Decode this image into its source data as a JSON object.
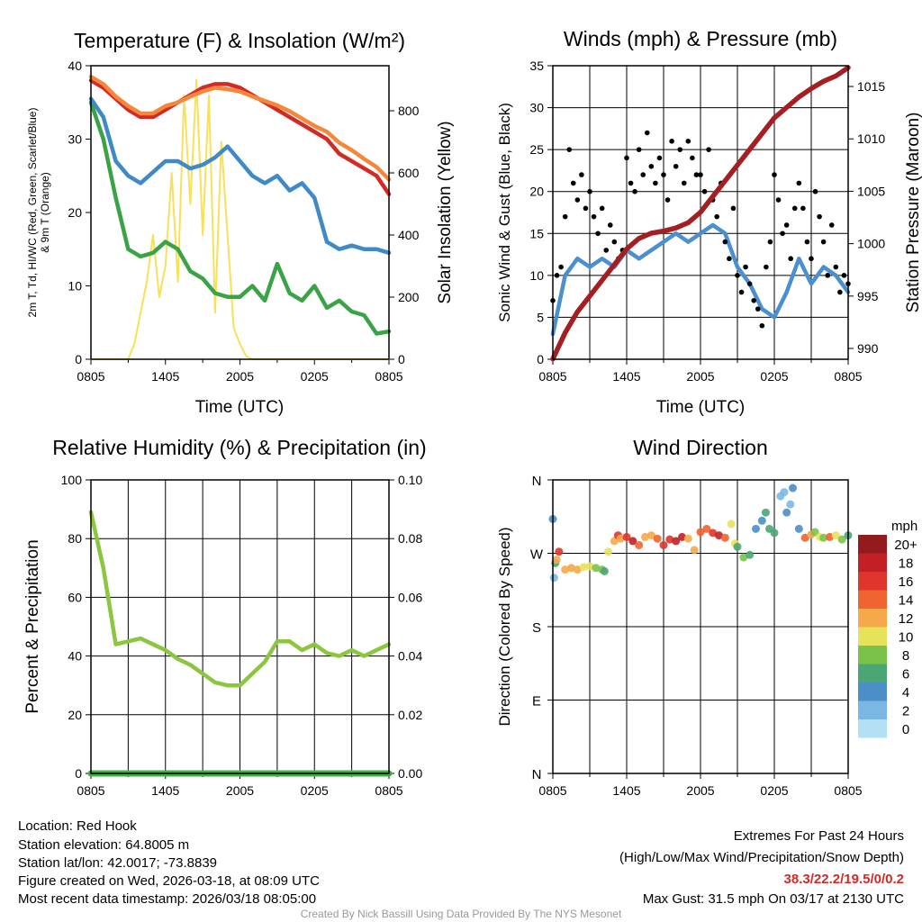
{
  "x_tick_labels": [
    "0805",
    "1405",
    "2005",
    "0205",
    "0805"
  ],
  "chart_data": [
    {
      "type": "line",
      "title": "Temperature (F) & Insolation (W/m²)",
      "xlabel": "Time (UTC)",
      "ylabel_line1": "2m T, Td, HI/WC (Red, Green, Scarlet/Blue)",
      "ylabel_line2": "& 9m T (Orange)",
      "ylabel_right": "Solar Insolation (Yellow)",
      "x_hours": [
        0,
        1,
        2,
        3,
        4,
        5,
        6,
        7,
        8,
        9,
        10,
        11,
        12,
        13,
        14,
        15,
        16,
        17,
        18,
        19,
        20,
        21,
        22,
        23,
        24
      ],
      "ylim": [
        0,
        40
      ],
      "y2lim": [
        0,
        945
      ],
      "yticks": [
        0,
        10,
        20,
        30,
        40
      ],
      "y2ticks": [
        0,
        200,
        400,
        600,
        800
      ],
      "series": [
        {
          "name": "2m T",
          "color": "#d42a26",
          "values": [
            38,
            37,
            35.5,
            34,
            33,
            33,
            34,
            35,
            36,
            37,
            37.5,
            37.5,
            37,
            36,
            35,
            34,
            33,
            32,
            31,
            30,
            28,
            27,
            26,
            25,
            22.5
          ]
        },
        {
          "name": "9m T",
          "color": "#f5873a",
          "values": [
            38.5,
            37.5,
            35.8,
            34.5,
            33.5,
            33.5,
            34.5,
            35,
            35.8,
            36.5,
            37,
            36.8,
            36.5,
            35.8,
            35.2,
            34.6,
            33.8,
            32.8,
            31.8,
            31,
            29.5,
            28.5,
            27.3,
            26.2,
            24.5
          ]
        },
        {
          "name": "Td",
          "color": "#3aa345",
          "values": [
            35,
            30,
            22,
            15,
            14,
            14.5,
            16,
            15,
            12,
            11,
            9,
            8.5,
            8.5,
            10,
            8,
            13,
            9,
            8,
            10,
            7,
            8,
            6.5,
            6,
            3.5,
            3.8
          ]
        },
        {
          "name": "HI/WC",
          "color": "#3f8ac6",
          "values": [
            35.5,
            33,
            27,
            25,
            24,
            25.5,
            27,
            27,
            26,
            26.5,
            27.5,
            29,
            27,
            25,
            24,
            25,
            23,
            24,
            22,
            16,
            15,
            15.5,
            15,
            15,
            14.5
          ]
        }
      ],
      "insolation": {
        "name": "Solar",
        "color": "#f8e05a",
        "step_hours": 0.5,
        "values": [
          0,
          0,
          0,
          0,
          0,
          0,
          0,
          50,
          150,
          250,
          400,
          200,
          300,
          600,
          250,
          850,
          500,
          900,
          400,
          850,
          150,
          700,
          400,
          100,
          50,
          10,
          0,
          0,
          0,
          0,
          0,
          0,
          0,
          0,
          0,
          0,
          0,
          0,
          0,
          0,
          0,
          0,
          0,
          0,
          0,
          0,
          0,
          0,
          0
        ]
      }
    },
    {
      "type": "line",
      "title": "Winds (mph) & Pressure (mb)",
      "xlabel": "Time (UTC)",
      "ylabel": "Sonic Wind & Gust (Blue, Black)",
      "ylabel_right": "Station Pressure (Maroon)",
      "ylim": [
        0,
        35
      ],
      "y2lim": [
        988.97,
        1016.98
      ],
      "yticks": [
        0,
        5,
        10,
        15,
        20,
        25,
        30,
        35
      ],
      "y2ticks": [
        990,
        995,
        1000,
        1005,
        1010,
        1015
      ],
      "x_hours": [
        0,
        1,
        2,
        3,
        4,
        5,
        6,
        7,
        8,
        9,
        10,
        11,
        12,
        13,
        14,
        15,
        16,
        17,
        18,
        19,
        20,
        21,
        22,
        23,
        24
      ],
      "wind": {
        "color": "#4a90d0",
        "values": [
          3,
          10,
          12,
          11,
          12,
          11,
          13,
          12,
          13,
          14,
          15,
          14,
          15,
          16,
          15,
          11,
          9,
          6,
          5,
          8,
          12,
          9,
          11,
          10,
          8
        ]
      },
      "pressure": {
        "color": "#a51e22",
        "values": [
          989,
          991.5,
          993.5,
          995,
          996.5,
          998,
          999.5,
          1000.5,
          1001,
          1001.2,
          1001.5,
          1002,
          1003,
          1004.5,
          1006,
          1007.5,
          1009,
          1010.5,
          1012,
          1013,
          1014,
          1014.8,
          1015.5,
          1016,
          1016.8
        ]
      },
      "gust": {
        "color": "#000000",
        "step_hours": 0.3333,
        "values": [
          7,
          10,
          11,
          17,
          25,
          21,
          19,
          22,
          18,
          20,
          17,
          15,
          18,
          13,
          16,
          14,
          12,
          13,
          24,
          21,
          20,
          25,
          22,
          27,
          23,
          21,
          24,
          22,
          19,
          26,
          23,
          25,
          21,
          26,
          24,
          22,
          22,
          20,
          25,
          19,
          17,
          21,
          14,
          12,
          18,
          10,
          8,
          11,
          9,
          7,
          6,
          4,
          11,
          14,
          22,
          19,
          15,
          16,
          12,
          18,
          21,
          18,
          14,
          12,
          20,
          17,
          14,
          10,
          16,
          11,
          8,
          10,
          9
        ]
      }
    },
    {
      "type": "line",
      "title": "Relative Humidity (%) & Precipitation (in)",
      "ylabel": "Percent & Precipitation",
      "ylim": [
        0,
        100
      ],
      "y2lim": [
        0,
        0.1
      ],
      "yticks": [
        0,
        20,
        40,
        60,
        80,
        100
      ],
      "y2ticks": [
        "0.00",
        "0.02",
        "0.04",
        "0.06",
        "0.08",
        "0.10"
      ],
      "x_hours": [
        0,
        1,
        2,
        3,
        4,
        5,
        6,
        7,
        8,
        9,
        10,
        11,
        12,
        13,
        14,
        15,
        16,
        17,
        18,
        19,
        20,
        21,
        22,
        23,
        24
      ],
      "rh": {
        "color": "#8cc63f",
        "values": [
          89,
          70,
          44,
          45,
          46,
          44,
          42,
          39,
          37,
          34,
          31,
          30,
          30,
          34,
          38,
          45,
          45,
          42,
          44,
          41,
          40,
          42,
          40,
          42,
          44
        ]
      },
      "precip": {
        "color": "#3fae49",
        "values": [
          0,
          0,
          0,
          0,
          0,
          0,
          0,
          0,
          0,
          0,
          0,
          0,
          0,
          0,
          0,
          0,
          0,
          0,
          0,
          0,
          0,
          0,
          0,
          0,
          0
        ]
      }
    },
    {
      "type": "scatter",
      "title": "Wind Direction",
      "ylabel": "Direction (Colored By Speed)",
      "yticks": [
        {
          "deg": 0,
          "label": "N"
        },
        {
          "deg": 90,
          "label": "E"
        },
        {
          "deg": 180,
          "label": "S"
        },
        {
          "deg": 270,
          "label": "W"
        },
        {
          "deg": 360,
          "label": "N"
        }
      ],
      "points_hour_deg_mph": [
        [
          0,
          312,
          5
        ],
        [
          0.1,
          240,
          3
        ],
        [
          0.2,
          258,
          7
        ],
        [
          0.3,
          262,
          13
        ],
        [
          0.5,
          272,
          16
        ],
        [
          1,
          250,
          13
        ],
        [
          1.5,
          252,
          12
        ],
        [
          2,
          250,
          13
        ],
        [
          2.5,
          253,
          11
        ],
        [
          3,
          254,
          10
        ],
        [
          3.5,
          252,
          9
        ],
        [
          4,
          250,
          8
        ],
        [
          4.2,
          248,
          7
        ],
        [
          4.5,
          272,
          11
        ],
        [
          5,
          285,
          13
        ],
        [
          5.3,
          292,
          17
        ],
        [
          5.5,
          288,
          12
        ],
        [
          6,
          290,
          16
        ],
        [
          6.5,
          285,
          18
        ],
        [
          7,
          280,
          15
        ],
        [
          7.5,
          290,
          13
        ],
        [
          8,
          292,
          12
        ],
        [
          8.5,
          288,
          14
        ],
        [
          9,
          280,
          17
        ],
        [
          9.5,
          287,
          16
        ],
        [
          10,
          285,
          19
        ],
        [
          10.5,
          290,
          18
        ],
        [
          11,
          288,
          13
        ],
        [
          11.5,
          274,
          13
        ],
        [
          12,
          296,
          15
        ],
        [
          12.5,
          300,
          14
        ],
        [
          13,
          295,
          17
        ],
        [
          13.5,
          292,
          18
        ],
        [
          14,
          289,
          15
        ],
        [
          14.5,
          306,
          10
        ],
        [
          14.8,
          282,
          11
        ],
        [
          15,
          278,
          6
        ],
        [
          15.5,
          265,
          8
        ],
        [
          16,
          268,
          7
        ],
        [
          16.5,
          300,
          4
        ],
        [
          17,
          310,
          4
        ],
        [
          17.3,
          320,
          6
        ],
        [
          17.6,
          300,
          7
        ],
        [
          18,
          295,
          6
        ],
        [
          18.5,
          340,
          3
        ],
        [
          18.8,
          345,
          2
        ],
        [
          19,
          320,
          4
        ],
        [
          19.3,
          330,
          3
        ],
        [
          19.5,
          350,
          4
        ],
        [
          20,
          300,
          5
        ],
        [
          20.5,
          289,
          14
        ],
        [
          21,
          293,
          12
        ],
        [
          21.3,
          296,
          9
        ],
        [
          21.7,
          290,
          10
        ],
        [
          22,
          289,
          8
        ],
        [
          22.5,
          290,
          14
        ],
        [
          23,
          292,
          10
        ],
        [
          23.5,
          287,
          9
        ],
        [
          24,
          292,
          7
        ]
      ],
      "legend": {
        "title": "mph",
        "labels": [
          "20+",
          "18",
          "16",
          "14",
          "12",
          "10",
          "8",
          "6",
          "4",
          "2",
          "0"
        ],
        "colors": [
          "#931a1d",
          "#c21f26",
          "#e0352a",
          "#ef6430",
          "#f5a94a",
          "#e6e25a",
          "#7bc24a",
          "#4aa673",
          "#4a8fc8",
          "#7ab8e3",
          "#b3e0f5"
        ]
      }
    }
  ],
  "footer": {
    "location": "Location: Red Hook",
    "elevation": "Station elevation: 64.8005 m",
    "latlon": "Station lat/lon: 42.0017; -73.8839",
    "created": "Figure created on Wed, 2026-03-18, at 08:09 UTC",
    "recent": "Most recent data timestamp: 2026/03/18 08:05:00",
    "extremes_title": "Extremes For Past 24 Hours",
    "extremes_sub": "(High/Low/Max Wind/Precipitation/Snow Depth)",
    "extremes_values": "38.3/22.2/19.5/0/0.2",
    "extremes_color": "#d42a26",
    "max_gust": "Max Gust: 31.5 mph On 03/17 at 2130 UTC",
    "credit": "Created By Nick Bassill Using Data Provided By The NYS Mesonet"
  }
}
